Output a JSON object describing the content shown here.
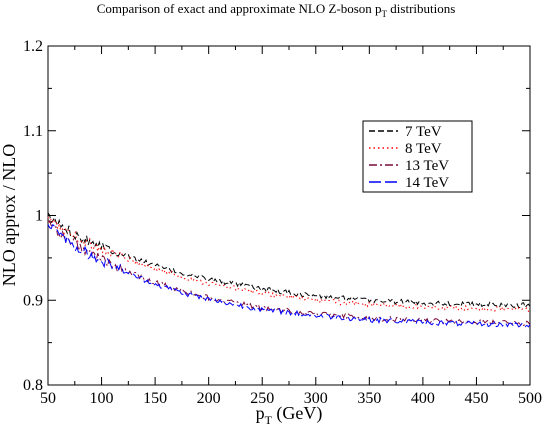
{
  "chart_data": {
    "type": "line",
    "title_main": "Comparison of exact and approximate NLO   Z-boson   p",
    "title_sub": "T",
    "title_tail": " distributions",
    "xlabel_main": "p",
    "xlabel_sub": "T",
    "xlabel_tail": " (GeV)",
    "ylabel": "NLO approx / NLO",
    "xlim": [
      50,
      500
    ],
    "ylim": [
      0.8,
      1.2
    ],
    "xticks": [
      50,
      100,
      150,
      200,
      250,
      300,
      350,
      400,
      450,
      500
    ],
    "xtick_labels": [
      "50",
      "100",
      "150",
      "200",
      "250",
      "300",
      "350",
      "400",
      "450",
      "500"
    ],
    "yticks": [
      0.8,
      0.9,
      1.0,
      1.1,
      1.2
    ],
    "ytick_labels": [
      "0.8",
      "0.9",
      "1",
      "1.1",
      "1.2"
    ],
    "grid": false,
    "legend_position": "right, upper-middle",
    "series": [
      {
        "name": "7 TeV",
        "color": "#000000",
        "dash": "6,3",
        "x": [
          50,
          60,
          70,
          80,
          90,
          100,
          125,
          150,
          175,
          200,
          250,
          300,
          350,
          400,
          450,
          500
        ],
        "y": [
          0.998,
          0.99,
          0.982,
          0.975,
          0.97,
          0.965,
          0.952,
          0.941,
          0.932,
          0.925,
          0.913,
          0.905,
          0.9,
          0.897,
          0.895,
          0.894
        ]
      },
      {
        "name": "8 TeV",
        "color": "#ff0000",
        "dash": "1.5,3",
        "x": [
          50,
          60,
          70,
          80,
          90,
          100,
          125,
          150,
          175,
          200,
          250,
          300,
          350,
          400,
          450,
          500
        ],
        "y": [
          0.995,
          0.987,
          0.979,
          0.972,
          0.966,
          0.961,
          0.948,
          0.937,
          0.928,
          0.92,
          0.908,
          0.9,
          0.895,
          0.892,
          0.89,
          0.889
        ]
      },
      {
        "name": "13 TeV",
        "color": "#7b0a3a",
        "dash": "8,3,2,3",
        "x": [
          50,
          60,
          70,
          80,
          90,
          100,
          125,
          150,
          175,
          200,
          250,
          300,
          350,
          400,
          450,
          500
        ],
        "y": [
          0.992,
          0.981,
          0.971,
          0.962,
          0.955,
          0.949,
          0.934,
          0.921,
          0.911,
          0.903,
          0.891,
          0.884,
          0.879,
          0.876,
          0.874,
          0.873
        ]
      },
      {
        "name": "14 TeV",
        "color": "#0000ff",
        "dash": "12,4",
        "x": [
          50,
          60,
          70,
          80,
          90,
          100,
          125,
          150,
          175,
          200,
          250,
          300,
          350,
          400,
          450,
          500
        ],
        "y": [
          0.99,
          0.979,
          0.969,
          0.96,
          0.953,
          0.947,
          0.932,
          0.919,
          0.909,
          0.901,
          0.889,
          0.882,
          0.877,
          0.874,
          0.872,
          0.871
        ]
      }
    ]
  }
}
